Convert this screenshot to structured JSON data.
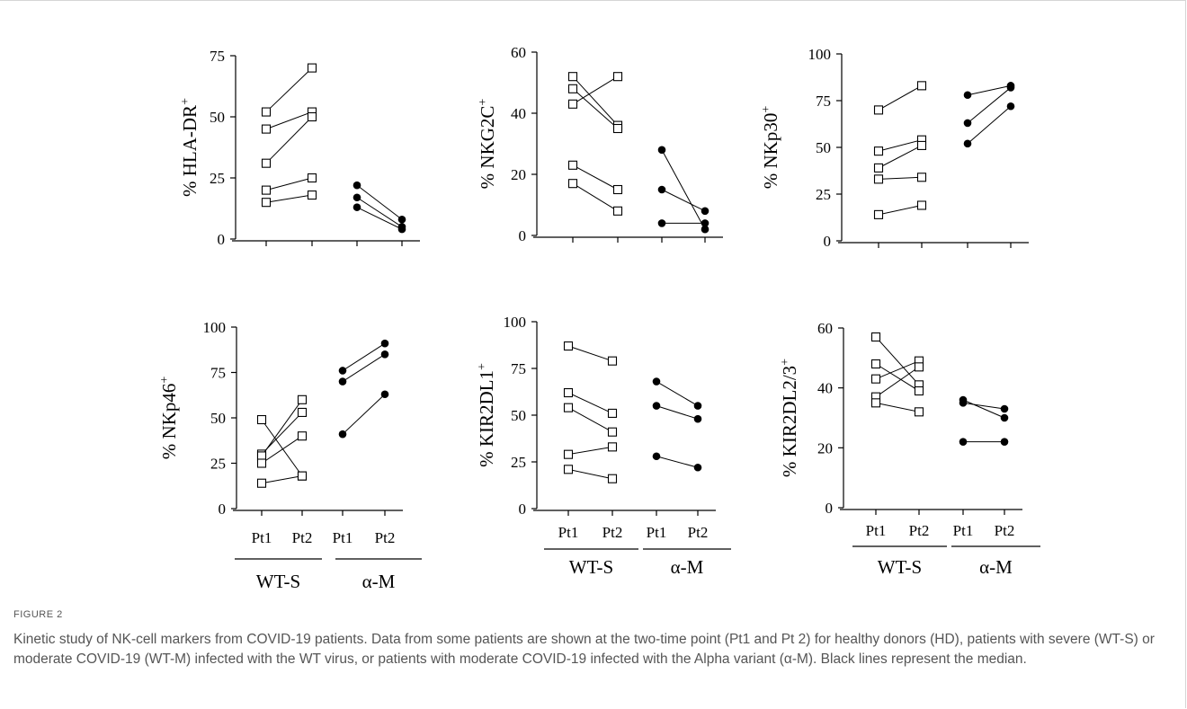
{
  "figure_label": "FIGURE 2",
  "caption": "Kinetic study of NK-cell markers from COVID-19 patients. Data from some patients are shown at the two-time point (Pt1 and Pt 2) for healthy donors (HD), patients with severe (WT-S) or moderate COVID-19 (WT-M) infected with the WT virus, or patients with moderate COVID-19 infected with the Alpha variant (α-M). Black lines represent the median.",
  "chart_data": [
    {
      "type": "scatter",
      "ylabel": "% HLA-DR",
      "ylabel_sup": "+",
      "ylim": [
        0,
        75
      ],
      "yticks": [
        0,
        25,
        50,
        75
      ],
      "groups": [
        {
          "name": "WT-S",
          "marker": "open-square",
          "pairs": [
            [
              52,
              70
            ],
            [
              45,
              52
            ],
            [
              31,
              50
            ],
            [
              20,
              25
            ],
            [
              15,
              18
            ]
          ]
        },
        {
          "name": "α-M",
          "marker": "filled-circle",
          "pairs": [
            [
              22,
              8
            ],
            [
              17,
              5
            ],
            [
              13,
              4
            ]
          ]
        }
      ]
    },
    {
      "type": "scatter",
      "ylabel": "% NKG2C",
      "ylabel_sup": "+",
      "ylim": [
        0,
        60
      ],
      "yticks": [
        0,
        20,
        40,
        60
      ],
      "groups": [
        {
          "name": "WT-S",
          "marker": "open-square",
          "pairs": [
            [
              52,
              36
            ],
            [
              48,
              35
            ],
            [
              43,
              52
            ],
            [
              23,
              15
            ],
            [
              17,
              8
            ]
          ]
        },
        {
          "name": "α-M",
          "marker": "filled-circle",
          "pairs": [
            [
              28,
              2
            ],
            [
              15,
              8
            ],
            [
              4,
              4
            ]
          ]
        }
      ]
    },
    {
      "type": "scatter",
      "ylabel": "% NKp30",
      "ylabel_sup": "+",
      "ylim": [
        0,
        100
      ],
      "yticks": [
        0,
        25,
        50,
        75,
        100
      ],
      "groups": [
        {
          "name": "WT-S",
          "marker": "open-square",
          "pairs": [
            [
              70,
              83
            ],
            [
              48,
              54
            ],
            [
              39,
              51
            ],
            [
              33,
              34
            ],
            [
              14,
              19
            ]
          ]
        },
        {
          "name": "α-M",
          "marker": "filled-circle",
          "pairs": [
            [
              78,
              83
            ],
            [
              63,
              82
            ],
            [
              52,
              72
            ]
          ]
        }
      ]
    },
    {
      "type": "scatter",
      "ylabel": "% NKp46",
      "ylabel_sup": "+",
      "ylim": [
        0,
        100
      ],
      "yticks": [
        0,
        25,
        50,
        75,
        100
      ],
      "xticks": [
        "Pt1",
        "Pt2",
        "Pt1",
        "Pt2"
      ],
      "group_labels": [
        "WT-S",
        "α-M"
      ],
      "groups": [
        {
          "name": "WT-S",
          "marker": "open-square",
          "pairs": [
            [
              49,
              18
            ],
            [
              30,
              53
            ],
            [
              29,
              60
            ],
            [
              25,
              40
            ],
            [
              14,
              18
            ]
          ]
        },
        {
          "name": "α-M",
          "marker": "filled-circle",
          "pairs": [
            [
              76,
              91
            ],
            [
              70,
              85
            ],
            [
              41,
              63
            ]
          ]
        }
      ]
    },
    {
      "type": "scatter",
      "ylabel": "% KIR2DL1",
      "ylabel_sup": "+",
      "ylim": [
        0,
        100
      ],
      "yticks": [
        0,
        25,
        50,
        75,
        100
      ],
      "xticks": [
        "Pt1",
        "Pt2",
        "Pt1",
        "Pt2"
      ],
      "group_labels": [
        "WT-S",
        "α-M"
      ],
      "groups": [
        {
          "name": "WT-S",
          "marker": "open-square",
          "pairs": [
            [
              87,
              79
            ],
            [
              62,
              51
            ],
            [
              54,
              41
            ],
            [
              29,
              33
            ],
            [
              21,
              16
            ]
          ]
        },
        {
          "name": "α-M",
          "marker": "filled-circle",
          "pairs": [
            [
              68,
              55
            ],
            [
              55,
              48
            ],
            [
              28,
              22
            ]
          ]
        }
      ]
    },
    {
      "type": "scatter",
      "ylabel": "% KIR2DL2/3",
      "ylabel_sup": "+",
      "ylim": [
        0,
        60
      ],
      "yticks": [
        0,
        20,
        40,
        60
      ],
      "xticks": [
        "Pt1",
        "Pt2",
        "Pt1",
        "Pt2"
      ],
      "group_labels": [
        "WT-S",
        "α-M"
      ],
      "groups": [
        {
          "name": "WT-S",
          "marker": "open-square",
          "pairs": [
            [
              57,
              41
            ],
            [
              48,
              39
            ],
            [
              43,
              49
            ],
            [
              37,
              47
            ],
            [
              35,
              32
            ]
          ]
        },
        {
          "name": "α-M",
          "marker": "filled-circle",
          "pairs": [
            [
              36,
              30
            ],
            [
              35,
              33
            ],
            [
              22,
              22
            ]
          ]
        }
      ]
    }
  ]
}
